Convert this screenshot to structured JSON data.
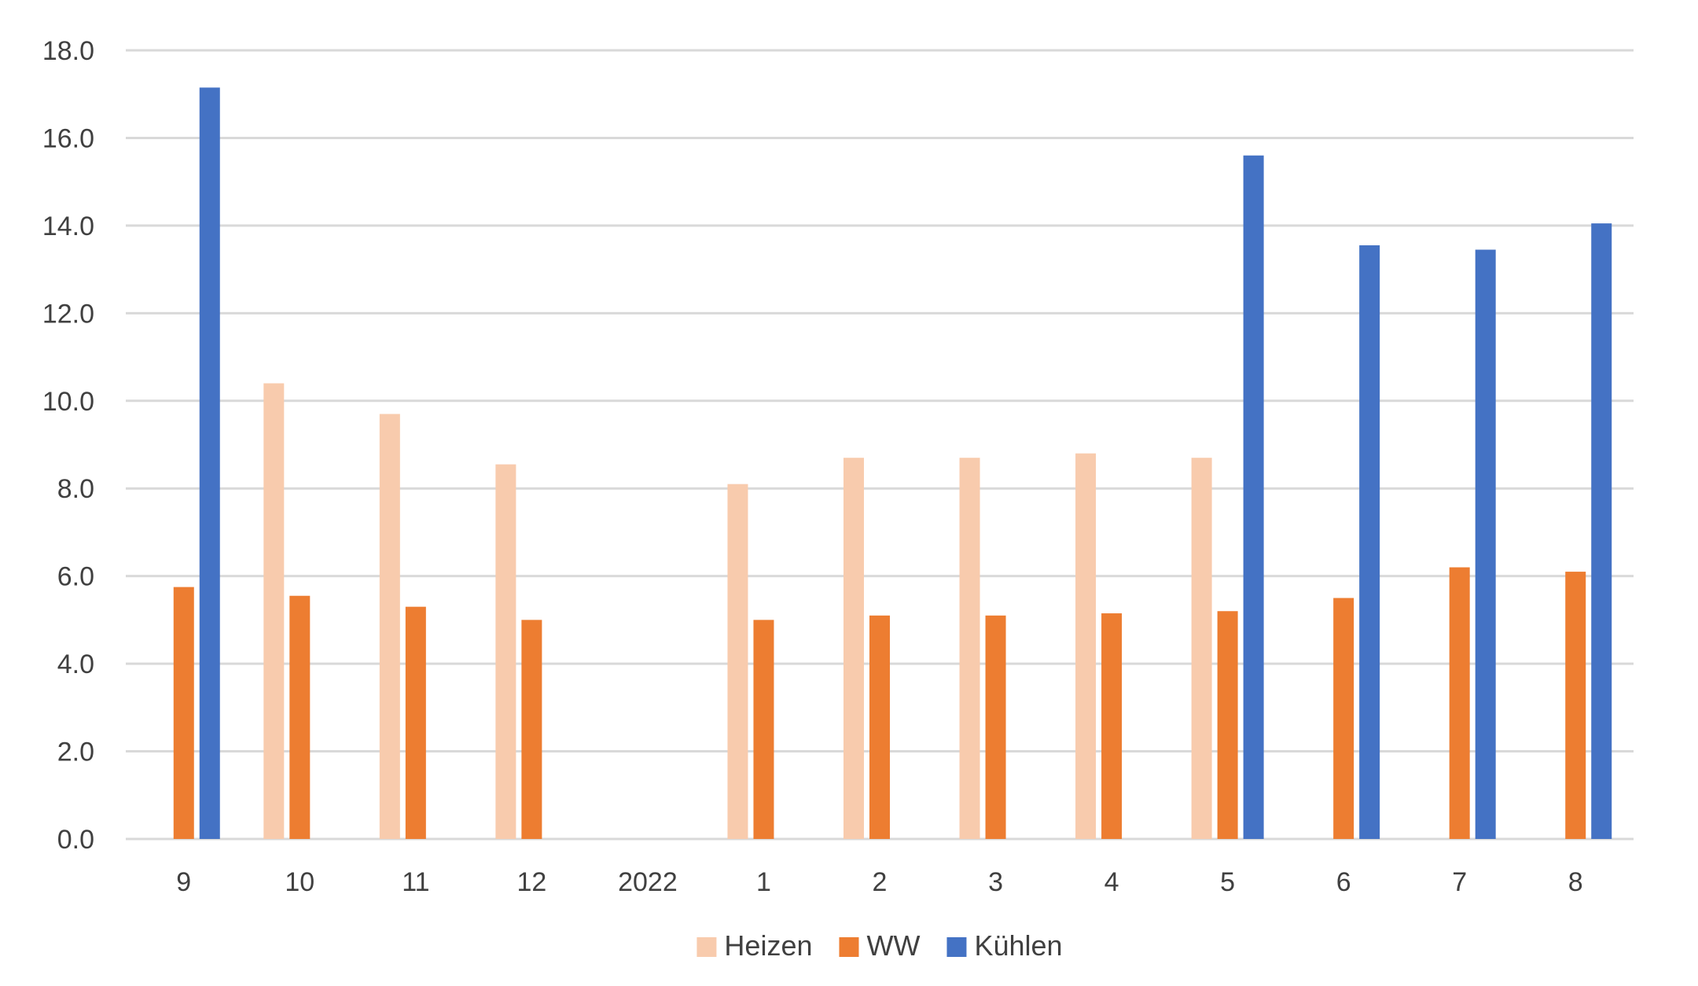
{
  "chart_data": {
    "type": "bar",
    "title": "",
    "xlabel": "",
    "ylabel": "",
    "categories": [
      "9",
      "10",
      "11",
      "12",
      "2022",
      "1",
      "2",
      "3",
      "4",
      "5",
      "6",
      "7",
      "8"
    ],
    "series": [
      {
        "name": "Heizen",
        "color": "#F8CBAD",
        "values": [
          null,
          10.4,
          9.7,
          8.55,
          null,
          8.1,
          8.7,
          8.7,
          8.8,
          8.7,
          null,
          null,
          null
        ]
      },
      {
        "name": "WW",
        "color": "#ED7D31",
        "values": [
          5.75,
          5.55,
          5.3,
          5.0,
          null,
          5.0,
          5.1,
          5.1,
          5.15,
          5.2,
          5.5,
          6.2,
          6.1
        ]
      },
      {
        "name": "Kühlen",
        "color": "#4472C4",
        "values": [
          17.15,
          null,
          null,
          null,
          null,
          null,
          null,
          null,
          null,
          15.6,
          13.55,
          13.45,
          14.05
        ]
      }
    ],
    "ylim": [
      0,
      18
    ],
    "yticks": [
      "0.0",
      "2.0",
      "4.0",
      "6.0",
      "8.0",
      "10.0",
      "12.0",
      "14.0",
      "16.0",
      "18.0"
    ],
    "grid": true,
    "gridline_color": "#D9D9D9",
    "legend": "bottom-center"
  }
}
